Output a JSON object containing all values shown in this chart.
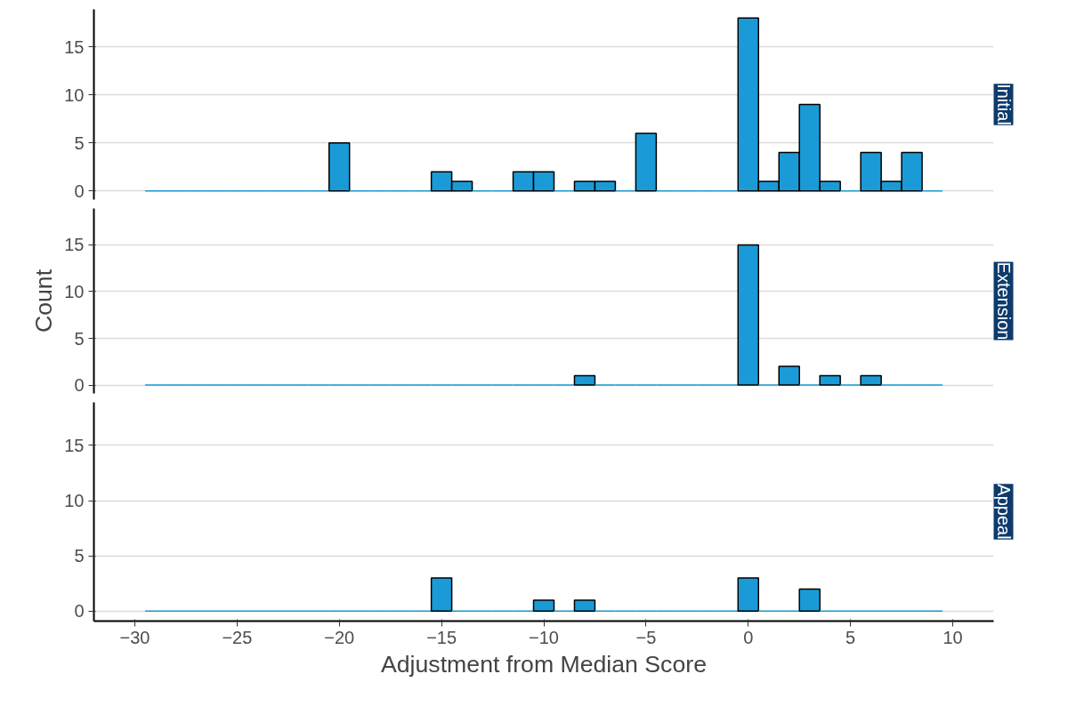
{
  "chart_data": [
    {
      "type": "histogram",
      "title": "Initial",
      "bins": [
        -29.5,
        -28.5,
        -27.5,
        -26.5,
        -25.5,
        -24.5,
        -23.5,
        -22.5,
        -21.5,
        -20.5,
        -19.5,
        -18.5,
        -17.5,
        -16.5,
        -15.5,
        -14.5,
        -13.5,
        -12.5,
        -11.5,
        -10.5,
        -9.5,
        -8.5,
        -7.5,
        -6.5,
        -5.5,
        -4.5,
        -3.5,
        -2.5,
        -1.5,
        -0.5,
        0.5,
        1.5,
        2.5,
        3.5,
        4.5,
        5.5,
        6.5,
        7.5,
        8.5,
        9.5
      ],
      "values": [
        0,
        0,
        0,
        0,
        0,
        0,
        0,
        0,
        0,
        5,
        0,
        0,
        0,
        0,
        2,
        1,
        0,
        0,
        2,
        2,
        0,
        1,
        1,
        0,
        6,
        0,
        0,
        0,
        0,
        18,
        1,
        4,
        9,
        1,
        0,
        4,
        1,
        4,
        0
      ],
      "color": "#1a9bd7",
      "xlim": [
        -32,
        12
      ],
      "xticks": [
        -30,
        -25,
        -20,
        -15,
        -10,
        -5,
        0,
        5,
        10
      ],
      "ylim": [
        -0.9,
        18.9
      ],
      "yticks": [
        0,
        5,
        10,
        15
      ],
      "grid": "y",
      "tick_labels": "y"
    },
    {
      "type": "histogram",
      "title": "Extension",
      "ylabel": "Count",
      "bins": [
        -29.5,
        -28.5,
        -27.5,
        -26.5,
        -25.5,
        -24.5,
        -23.5,
        -22.5,
        -21.5,
        -20.5,
        -19.5,
        -18.5,
        -17.5,
        -16.5,
        -15.5,
        -14.5,
        -13.5,
        -12.5,
        -11.5,
        -10.5,
        -9.5,
        -8.5,
        -7.5,
        -6.5,
        -5.5,
        -4.5,
        -3.5,
        -2.5,
        -1.5,
        -0.5,
        0.5,
        1.5,
        2.5,
        3.5,
        4.5,
        5.5,
        6.5,
        7.5,
        8.5,
        9.5
      ],
      "values": [
        0,
        0,
        0,
        0,
        0,
        0,
        0,
        0,
        0,
        0,
        0,
        0,
        0,
        0,
        0,
        0,
        0,
        0,
        0,
        0,
        0,
        1,
        0,
        0,
        0,
        0,
        0,
        0,
        0,
        15,
        0,
        2,
        0,
        1,
        0,
        1,
        0,
        0,
        0
      ],
      "color": "#1a9bd7",
      "xlim": [
        -32,
        12
      ],
      "xticks": [
        -30,
        -25,
        -20,
        -15,
        -10,
        -5,
        0,
        5,
        10
      ],
      "ylim": [
        -0.9,
        18.9
      ],
      "yticks": [
        0,
        5,
        10,
        15
      ],
      "grid": "y",
      "tick_labels": "y"
    },
    {
      "type": "histogram",
      "title": "Appeal",
      "xlabel": "Adjustment from Median Score",
      "bins": [
        -29.5,
        -28.5,
        -27.5,
        -26.5,
        -25.5,
        -24.5,
        -23.5,
        -22.5,
        -21.5,
        -20.5,
        -19.5,
        -18.5,
        -17.5,
        -16.5,
        -15.5,
        -14.5,
        -13.5,
        -12.5,
        -11.5,
        -10.5,
        -9.5,
        -8.5,
        -7.5,
        -6.5,
        -5.5,
        -4.5,
        -3.5,
        -2.5,
        -1.5,
        -0.5,
        0.5,
        1.5,
        2.5,
        3.5,
        4.5,
        5.5,
        6.5,
        7.5,
        8.5,
        9.5
      ],
      "values": [
        0,
        0,
        0,
        0,
        0,
        0,
        0,
        0,
        0,
        0,
        0,
        0,
        0,
        0,
        3,
        0,
        0,
        0,
        0,
        1,
        0,
        1,
        0,
        0,
        0,
        0,
        0,
        0,
        0,
        3,
        0,
        0,
        2,
        0,
        0,
        0,
        0,
        0,
        0
      ],
      "color": "#1a9bd7",
      "xlim": [
        -32,
        12
      ],
      "xticks": [
        -30,
        -25,
        -20,
        -15,
        -10,
        -5,
        0,
        5,
        10
      ],
      "ylim": [
        -0.9,
        18.9
      ],
      "yticks": [
        0,
        5,
        10,
        15
      ],
      "grid": "y"
    }
  ]
}
